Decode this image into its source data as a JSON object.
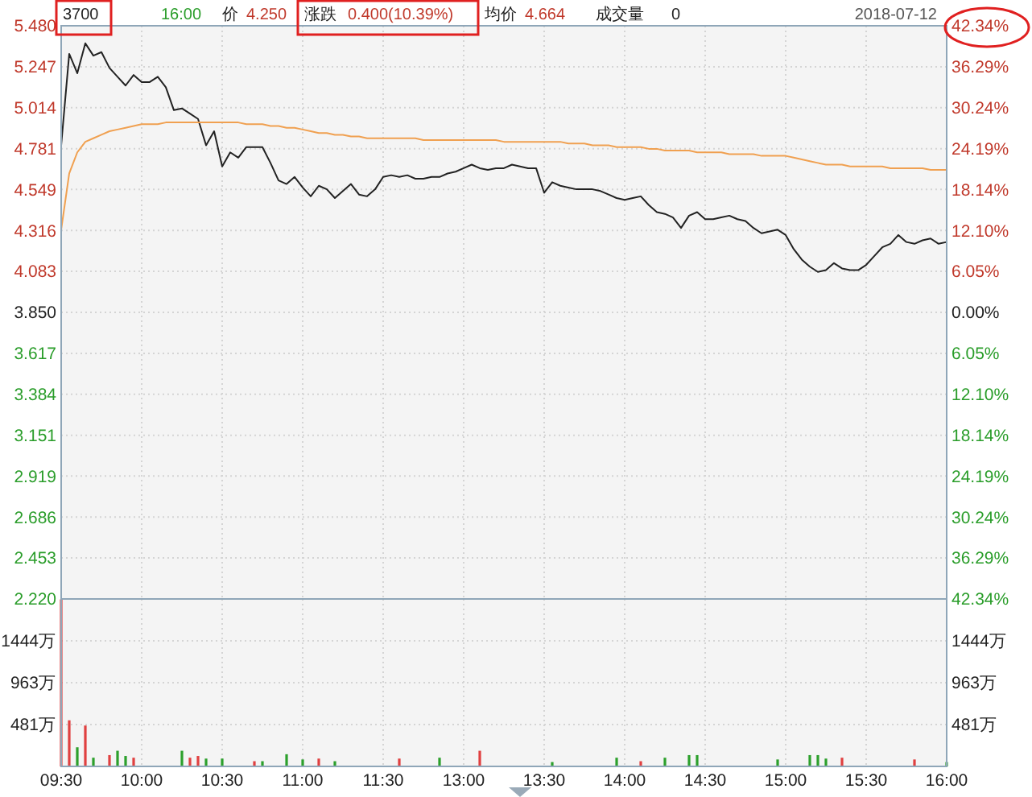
{
  "chart_data": [
    {
      "type": "line",
      "annotations": [
        "3700",
        "16:00",
        "价",
        "4.250",
        "涨跌",
        "0.400(10.39%)",
        "均价",
        "4.664",
        "成交量",
        "0",
        "2018-07-12"
      ],
      "categories": [
        null,
        null,
        null,
        null,
        null,
        null,
        null,
        null,
        null,
        null,
        null,
        null,
        null,
        null,
        null,
        null,
        null,
        null,
        null,
        null,
        null,
        null,
        null,
        null,
        null,
        null,
        null,
        null,
        null,
        null,
        null,
        null,
        null,
        null,
        null,
        null,
        null,
        null,
        null,
        null,
        null,
        null,
        null,
        null,
        null,
        null,
        null,
        null,
        null,
        null,
        null,
        null,
        null,
        null,
        null,
        null,
        null,
        null,
        null,
        null,
        null,
        null,
        null,
        null,
        null,
        null,
        null,
        null,
        null,
        null,
        null,
        null,
        null,
        null,
        null,
        null,
        null,
        null,
        null,
        null,
        null,
        null,
        null,
        null,
        null,
        null,
        null,
        null,
        null,
        null,
        null,
        null,
        null,
        null,
        null,
        null,
        null,
        null,
        null,
        null,
        null,
        null,
        null,
        null,
        null,
        null,
        null,
        null,
        null,
        null,
        null
      ],
      "ylim": [
        2.22,
        5.48
      ],
      "yticks": [
        {
          "value": 2.22,
          "label": "2.220"
        },
        {
          "value": 2.453,
          "label": "2.453"
        },
        {
          "value": 2.686,
          "label": "2.686"
        },
        {
          "value": 2.919,
          "label": "2.919"
        },
        {
          "value": 3.151,
          "label": "3.151"
        },
        {
          "value": 3.384,
          "label": "3.384"
        },
        {
          "value": 3.617,
          "label": "3.617"
        },
        {
          "value": 3.85,
          "label": "3.850"
        },
        {
          "value": 4.083,
          "label": "4.083"
        },
        {
          "value": 4.316,
          "label": "4.316"
        },
        {
          "value": 4.549,
          "label": "4.549"
        },
        {
          "value": 4.781,
          "label": "4.781"
        },
        {
          "value": 5.014,
          "label": "5.014"
        },
        {
          "value": 5.247,
          "label": "5.247"
        },
        {
          "value": 5.48,
          "label": "5.480"
        }
      ],
      "y2lim": [
        -42.34,
        42.34
      ],
      "y2ticks": [
        {
          "value": -42.34,
          "label": "42.34%"
        },
        {
          "value": -36.29,
          "label": "36.29%"
        },
        {
          "value": -30.24,
          "label": "30.24%"
        },
        {
          "value": -24.19,
          "label": "24.19%"
        },
        {
          "value": -18.14,
          "label": "18.14%"
        },
        {
          "value": -12.1,
          "label": "12.10%"
        },
        {
          "value": -6.05,
          "label": "6.05%"
        },
        {
          "value": 0,
          "label": "0.00%"
        },
        {
          "value": 6.05,
          "label": "6.05%"
        },
        {
          "value": 12.1,
          "label": "12.10%"
        },
        {
          "value": 18.14,
          "label": "18.14%"
        },
        {
          "value": 24.19,
          "label": "24.19%"
        },
        {
          "value": 30.24,
          "label": "30.24%"
        },
        {
          "value": 36.29,
          "label": "36.29%"
        },
        {
          "value": 42.34,
          "label": "42.34%"
        }
      ],
      "tick_labels": "y",
      "grid": true,
      "series": [
        {
          "type": "line",
          "color": "#222222",
          "values": [
            4.8,
            5.32,
            5.21,
            5.38,
            5.31,
            5.33,
            5.24,
            5.19,
            5.14,
            5.2,
            5.16,
            5.16,
            5.19,
            5.13,
            5.0,
            5.01,
            4.98,
            4.95,
            4.8,
            4.88,
            4.68,
            4.76,
            4.73,
            4.79,
            4.79,
            4.79,
            4.7,
            4.6,
            4.58,
            4.62,
            4.56,
            4.51,
            4.57,
            4.55,
            4.5,
            4.54,
            4.58,
            4.52,
            4.51,
            4.55,
            4.62,
            4.63,
            4.62,
            4.63,
            4.61,
            4.61,
            4.62,
            4.62,
            4.64,
            4.65,
            4.67,
            4.69,
            4.67,
            4.66,
            4.67,
            4.67,
            4.69,
            4.68,
            4.67,
            4.67,
            4.53,
            4.59,
            4.57,
            4.56,
            4.55,
            4.55,
            4.55,
            4.54,
            4.52,
            4.5,
            4.49,
            4.5,
            4.51,
            4.46,
            4.42,
            4.41,
            4.39,
            4.33,
            4.4,
            4.42,
            4.38,
            4.38,
            4.39,
            4.4,
            4.38,
            4.37,
            4.33,
            4.3,
            4.31,
            4.32,
            4.29,
            4.21,
            4.15,
            4.11,
            4.08,
            4.09,
            4.13,
            4.1,
            4.09,
            4.09,
            4.12,
            4.17,
            4.22,
            4.24,
            4.29,
            4.25,
            4.24,
            4.26,
            4.27,
            4.24,
            4.25
          ]
        },
        {
          "type": "line",
          "color": "#f0a050",
          "values": [
            4.32,
            4.64,
            4.76,
            4.82,
            4.84,
            4.86,
            4.88,
            4.89,
            4.9,
            4.91,
            4.92,
            4.92,
            4.92,
            4.93,
            4.93,
            4.93,
            4.93,
            4.93,
            4.93,
            4.93,
            4.93,
            4.93,
            4.93,
            4.92,
            4.92,
            4.92,
            4.91,
            4.91,
            4.9,
            4.9,
            4.89,
            4.88,
            4.87,
            4.87,
            4.86,
            4.86,
            4.85,
            4.85,
            4.84,
            4.84,
            4.84,
            4.84,
            4.84,
            4.84,
            4.84,
            4.83,
            4.83,
            4.83,
            4.83,
            4.83,
            4.83,
            4.83,
            4.83,
            4.83,
            4.83,
            4.82,
            4.82,
            4.82,
            4.82,
            4.82,
            4.82,
            4.82,
            4.82,
            4.81,
            4.81,
            4.81,
            4.8,
            4.8,
            4.8,
            4.79,
            4.79,
            4.79,
            4.79,
            4.78,
            4.78,
            4.77,
            4.77,
            4.77,
            4.77,
            4.76,
            4.76,
            4.76,
            4.76,
            4.75,
            4.75,
            4.75,
            4.75,
            4.74,
            4.74,
            4.74,
            4.74,
            4.73,
            4.72,
            4.71,
            4.7,
            4.69,
            4.69,
            4.69,
            4.68,
            4.68,
            4.68,
            4.68,
            4.68,
            4.67,
            4.67,
            4.67,
            4.67,
            4.67,
            4.66,
            4.66,
            4.66
          ]
        }
      ]
    },
    {
      "type": "bar",
      "categories": [
        "09:30",
        null,
        null,
        null,
        null,
        null,
        null,
        null,
        null,
        null,
        "10:00",
        null,
        null,
        null,
        null,
        null,
        null,
        null,
        null,
        null,
        "10:30",
        null,
        null,
        null,
        null,
        null,
        null,
        null,
        null,
        null,
        "11:00",
        null,
        null,
        null,
        null,
        null,
        null,
        null,
        null,
        null,
        "11:30",
        null,
        null,
        null,
        null,
        null,
        null,
        null,
        null,
        null,
        "13:00",
        null,
        null,
        null,
        null,
        null,
        null,
        null,
        null,
        null,
        "13:30",
        null,
        null,
        null,
        null,
        null,
        null,
        null,
        null,
        null,
        "14:00",
        null,
        null,
        null,
        null,
        null,
        null,
        null,
        null,
        null,
        "14:30",
        null,
        null,
        null,
        null,
        null,
        null,
        null,
        null,
        null,
        "15:00",
        null,
        null,
        null,
        null,
        null,
        null,
        null,
        null,
        null,
        "15:30",
        null,
        null,
        null,
        null,
        null,
        null,
        null,
        null,
        null,
        "16:00"
      ],
      "ylim": [
        0,
        1925
      ],
      "yticks": [
        {
          "value": 481,
          "label": "481万"
        },
        {
          "value": 963,
          "label": "963万"
        },
        {
          "value": 1444,
          "label": "1444万"
        }
      ],
      "y2lim": [
        0,
        1925
      ],
      "y2ticks": [
        {
          "value": 481,
          "label": "481万"
        },
        {
          "value": 963,
          "label": "963万"
        },
        {
          "value": 1444,
          "label": "1444万"
        }
      ],
      "grid": true,
      "values": [
        1920,
        530,
        220,
        470,
        100,
        null,
        130,
        180,
        120,
        100,
        null,
        null,
        null,
        null,
        null,
        180,
        100,
        120,
        90,
        null,
        90,
        null,
        null,
        null,
        60,
        60,
        null,
        null,
        140,
        null,
        80,
        null,
        90,
        null,
        60,
        null,
        null,
        null,
        null,
        null,
        null,
        null,
        90,
        null,
        null,
        null,
        null,
        100,
        null,
        null,
        null,
        null,
        180,
        null,
        null,
        null,
        null,
        null,
        null,
        null,
        null,
        50,
        null,
        null,
        null,
        null,
        null,
        null,
        null,
        100,
        null,
        null,
        60,
        null,
        null,
        100,
        null,
        null,
        130,
        130,
        null,
        null,
        null,
        null,
        null,
        null,
        null,
        null,
        null,
        80,
        null,
        null,
        null,
        130,
        130,
        90,
        null,
        100,
        null,
        null,
        null,
        null,
        null,
        null,
        null,
        null,
        80,
        null,
        null,
        null,
        50
      ],
      "colors": [
        "#e04040",
        "#e04040",
        "#2ca02c",
        "#e04040",
        "#2ca02c",
        null,
        "#e04040",
        "#2ca02c",
        "#2ca02c",
        "#e04040",
        null,
        null,
        null,
        null,
        null,
        "#2ca02c",
        "#e04040",
        "#e04040",
        "#2ca02c",
        null,
        "#2ca02c",
        null,
        null,
        null,
        "#e04040",
        "#2ca02c",
        null,
        null,
        "#2ca02c",
        null,
        "#2ca02c",
        null,
        "#e04040",
        null,
        "#2ca02c",
        null,
        null,
        null,
        null,
        null,
        null,
        null,
        "#e04040",
        null,
        null,
        null,
        null,
        "#2ca02c",
        null,
        null,
        null,
        null,
        "#e04040",
        null,
        null,
        null,
        null,
        null,
        null,
        null,
        null,
        "#2ca02c",
        null,
        null,
        null,
        null,
        null,
        null,
        null,
        "#2ca02c",
        null,
        null,
        "#e04040",
        null,
        null,
        "#2ca02c",
        null,
        null,
        "#2ca02c",
        "#2ca02c",
        null,
        null,
        null,
        null,
        null,
        null,
        null,
        null,
        null,
        "#2ca02c",
        null,
        null,
        null,
        "#2ca02c",
        "#2ca02c",
        "#2ca02c",
        null,
        "#e04040",
        null,
        null,
        null,
        null,
        null,
        null,
        null,
        null,
        "#e04040",
        null,
        null,
        null,
        "#2ca02c"
      ]
    }
  ]
}
